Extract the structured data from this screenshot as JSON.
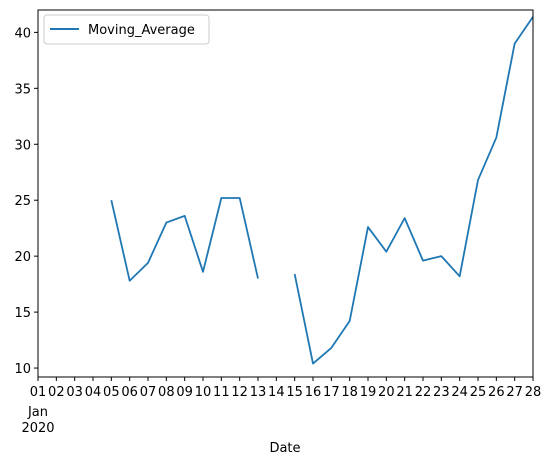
{
  "chart_data": {
    "type": "line",
    "xlabel": "Date",
    "ylabel": "",
    "ylim": [
      9.2,
      42.0
    ],
    "yticks": [
      10,
      15,
      20,
      25,
      30,
      35,
      40
    ],
    "x_tick_labels": [
      "01",
      "02",
      "03",
      "04",
      "05",
      "06",
      "07",
      "08",
      "09",
      "10",
      "11",
      "12",
      "13",
      "14",
      "15",
      "16",
      "17",
      "18",
      "19",
      "20",
      "21",
      "22",
      "23",
      "24",
      "25",
      "26",
      "27",
      "28"
    ],
    "x_tick_sublabels": [
      "Jan",
      "2020"
    ],
    "x_dates": [
      "2020-01-01",
      "2020-01-02",
      "2020-01-03",
      "2020-01-04",
      "2020-01-05",
      "2020-01-06",
      "2020-01-07",
      "2020-01-08",
      "2020-01-09",
      "2020-01-10",
      "2020-01-11",
      "2020-01-12",
      "2020-01-13",
      "2020-01-14",
      "2020-01-15",
      "2020-01-16",
      "2020-01-17",
      "2020-01-18",
      "2020-01-19",
      "2020-01-20",
      "2020-01-21",
      "2020-01-22",
      "2020-01-23",
      "2020-01-24",
      "2020-01-25",
      "2020-01-26",
      "2020-01-27",
      "2020-01-28"
    ],
    "series": [
      {
        "name": "Moving_Average",
        "color": "#1f77b4",
        "values": [
          null,
          null,
          null,
          null,
          25.0,
          17.8,
          19.4,
          23.0,
          23.6,
          18.6,
          25.2,
          25.2,
          18.0,
          null,
          18.4,
          10.4,
          11.8,
          14.2,
          22.6,
          20.4,
          23.4,
          19.6,
          20.0,
          18.2,
          26.8,
          30.6,
          39.0,
          41.4
        ]
      }
    ],
    "legend": "top-left",
    "grid": false
  }
}
